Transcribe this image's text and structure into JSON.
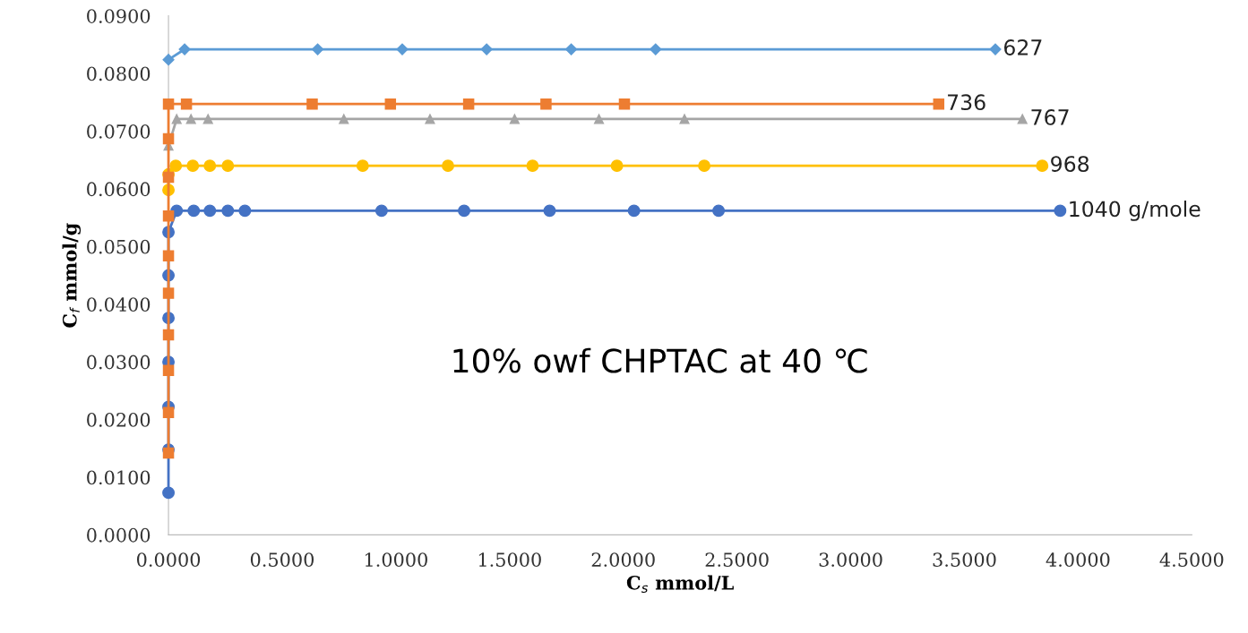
{
  "chart_data": {
    "type": "line",
    "xlabel": "C$_{s}$ mmol/L",
    "ylabel": "C$_{f}$ mmol/g",
    "xlim": [
      0,
      4.5
    ],
    "xticks": [
      {
        "value": 0,
        "label": "0.0000"
      },
      {
        "value": 0.5,
        "label": "0.5000"
      },
      {
        "value": 1,
        "label": "1.0000"
      },
      {
        "value": 1.5,
        "label": "1.5000"
      },
      {
        "value": 2,
        "label": "2.0000"
      },
      {
        "value": 2.5,
        "label": "2.5000"
      },
      {
        "value": 3,
        "label": "3.0000"
      },
      {
        "value": 3.5,
        "label": "3.5000"
      },
      {
        "value": 4,
        "label": "4.0000"
      },
      {
        "value": 4.5,
        "label": "4.5000"
      }
    ],
    "ylim": [
      0,
      0.09
    ],
    "yticks": [
      {
        "value": 0,
        "label": "0.0000"
      },
      {
        "value": 0.01,
        "label": "0.0100"
      },
      {
        "value": 0.02,
        "label": "0.0200"
      },
      {
        "value": 0.03,
        "label": "0.0300"
      },
      {
        "value": 0.04,
        "label": "0.0400"
      },
      {
        "value": 0.05,
        "label": "0.0500"
      },
      {
        "value": 0.06,
        "label": "0.0600"
      },
      {
        "value": 0.07,
        "label": "0.0700"
      },
      {
        "value": 0.08,
        "label": "0.0800"
      },
      {
        "value": 0.09,
        "label": "0.0900"
      }
    ],
    "grid": false,
    "legend": false,
    "line_style": "solid",
    "annotations": [
      {
        "text": "10% owf CHPTAC at 40 ℃"
      }
    ],
    "series": [
      {
        "name": "627",
        "color": "#5b9bd5",
        "marker": "diamond",
        "x": [
          0,
          0.071,
          0.656,
          1.028,
          1.399,
          1.771,
          2.142,
          3.636
        ],
        "values": [
          0.0824,
          0.0842,
          0.0842,
          0.0842,
          0.0842,
          0.0842,
          0.0842,
          0.0842
        ]
      },
      {
        "name": "736",
        "color": "#ed7d31",
        "marker": "square",
        "x": [
          0,
          0,
          0,
          0,
          0,
          0,
          0,
          0,
          0,
          0,
          0.079,
          0.632,
          0.976,
          1.32,
          1.66,
          2.005,
          3.387
        ],
        "values": [
          0.0142,
          0.0212,
          0.0285,
          0.0347,
          0.0419,
          0.0484,
          0.0553,
          0.062,
          0.0687,
          0.0747,
          0.0747,
          0.0747,
          0.0747,
          0.0747,
          0.0747,
          0.0747,
          0.0747
        ]
      },
      {
        "name": "767",
        "color": "#a5a5a5",
        "marker": "triangle",
        "x": [
          0,
          0.036,
          0.099,
          0.174,
          0.771,
          1.15,
          1.522,
          1.893,
          2.269,
          3.755
        ],
        "values": [
          0.0675,
          0.0721,
          0.0721,
          0.0721,
          0.0721,
          0.0721,
          0.0721,
          0.0721,
          0.0721,
          0.0721
        ]
      },
      {
        "name": "968",
        "color": "#ffc000",
        "marker": "circle",
        "x": [
          0,
          0,
          0.032,
          0.107,
          0.182,
          0.261,
          0.854,
          1.229,
          1.601,
          1.972,
          2.356,
          3.842
        ],
        "values": [
          0.0598,
          0.0625,
          0.064,
          0.064,
          0.064,
          0.064,
          0.064,
          0.064,
          0.064,
          0.064,
          0.064,
          0.064
        ]
      },
      {
        "name": "1040 g/mole",
        "color": "#4472c4",
        "marker": "circle",
        "x": [
          0,
          0,
          0,
          0,
          0,
          0,
          0,
          0.036,
          0.111,
          0.182,
          0.261,
          0.336,
          0.937,
          1.3,
          1.676,
          2.047,
          2.419,
          3.921
        ],
        "values": [
          0.0073,
          0.0148,
          0.0222,
          0.03,
          0.0376,
          0.045,
          0.0525,
          0.0562,
          0.0562,
          0.0562,
          0.0562,
          0.0562,
          0.0562,
          0.0562,
          0.0562,
          0.0562,
          0.0562,
          0.0562
        ]
      }
    ]
  }
}
